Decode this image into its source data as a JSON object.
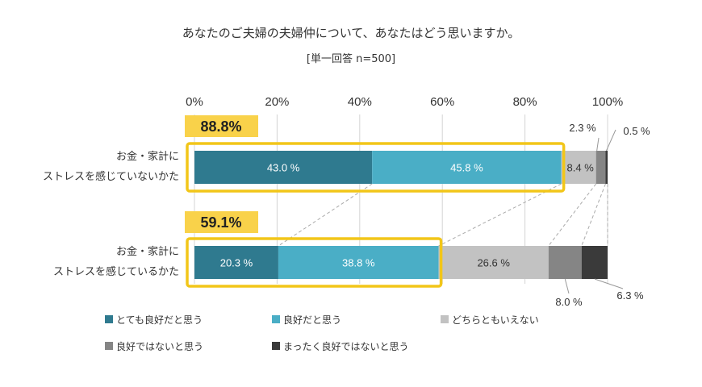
{
  "title": "あなたのご夫婦の夫婦仲について、あなたはどう思いますか。",
  "subtitle": "[単一回答 n=500]",
  "colors": {
    "very_good": "#2f7a8f",
    "good": "#4aaec6",
    "neutral": "#c2c2c2",
    "not_good": "#858585",
    "not_at_all": "#3a3a3a",
    "highlight": "#f2c619",
    "badge_bg": "#f9d24a",
    "grid": "#d4d4d4"
  },
  "chart_data": {
    "type": "bar",
    "orientation": "horizontal",
    "stacked": true,
    "xlim": [
      0,
      100
    ],
    "x_ticks": [
      "0%",
      "20%",
      "40%",
      "60%",
      "80%",
      "100%"
    ],
    "grid": true,
    "legend_position": "bottom",
    "categories": [
      "お金・家計に\nストレスを感じていないかた",
      "お金・家計に\nストレスを感じているかた"
    ],
    "series": [
      {
        "name": "とても良好だと思う",
        "values": [
          43.0,
          20.3
        ],
        "labels": [
          "43.0 %",
          "20.3 %"
        ]
      },
      {
        "name": "良好だと思う",
        "values": [
          45.8,
          38.8
        ],
        "labels": [
          "45.8 %",
          "38.8 %"
        ]
      },
      {
        "name": "どちらともいえない",
        "values": [
          8.4,
          26.6
        ],
        "labels": [
          "8.4 %",
          "26.6 %"
        ]
      },
      {
        "name": "良好ではないと思う",
        "values": [
          2.3,
          8.0
        ],
        "labels": [
          "2.3 %",
          "8.0 %"
        ]
      },
      {
        "name": "まったく良好ではないと思う",
        "values": [
          0.5,
          6.3
        ],
        "labels": [
          "0.5 %",
          "6.3 %"
        ]
      }
    ],
    "combined_totals": [
      "88.8%",
      "59.1%"
    ]
  }
}
